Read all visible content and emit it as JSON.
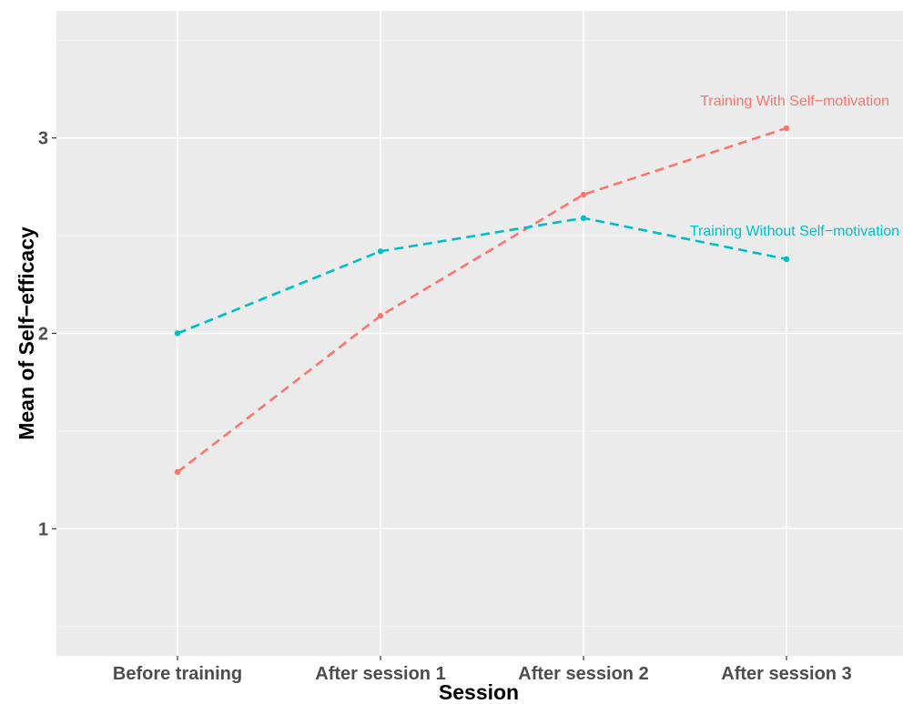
{
  "chart_data": {
    "type": "line",
    "xlabel": "Session",
    "ylabel": "Mean of Self−efficacy",
    "categories": [
      "Before training",
      "After session 1",
      "After session 2",
      "After session 3"
    ],
    "ylim": [
      0.35,
      3.65
    ],
    "yticks": [
      1,
      2,
      3
    ],
    "ytick_labels": [
      "1",
      "2",
      "3"
    ],
    "grid": true,
    "line_style": "dashed",
    "series": [
      {
        "name": "Training With Self−motivation",
        "values": [
          1.29,
          2.09,
          2.71,
          3.05
        ],
        "color": "#F8766D"
      },
      {
        "name": "Training Without Self−motivation",
        "values": [
          2.0,
          2.42,
          2.59,
          2.38
        ],
        "color": "#00BFC4"
      }
    ],
    "legend": "direct labels near last points"
  }
}
